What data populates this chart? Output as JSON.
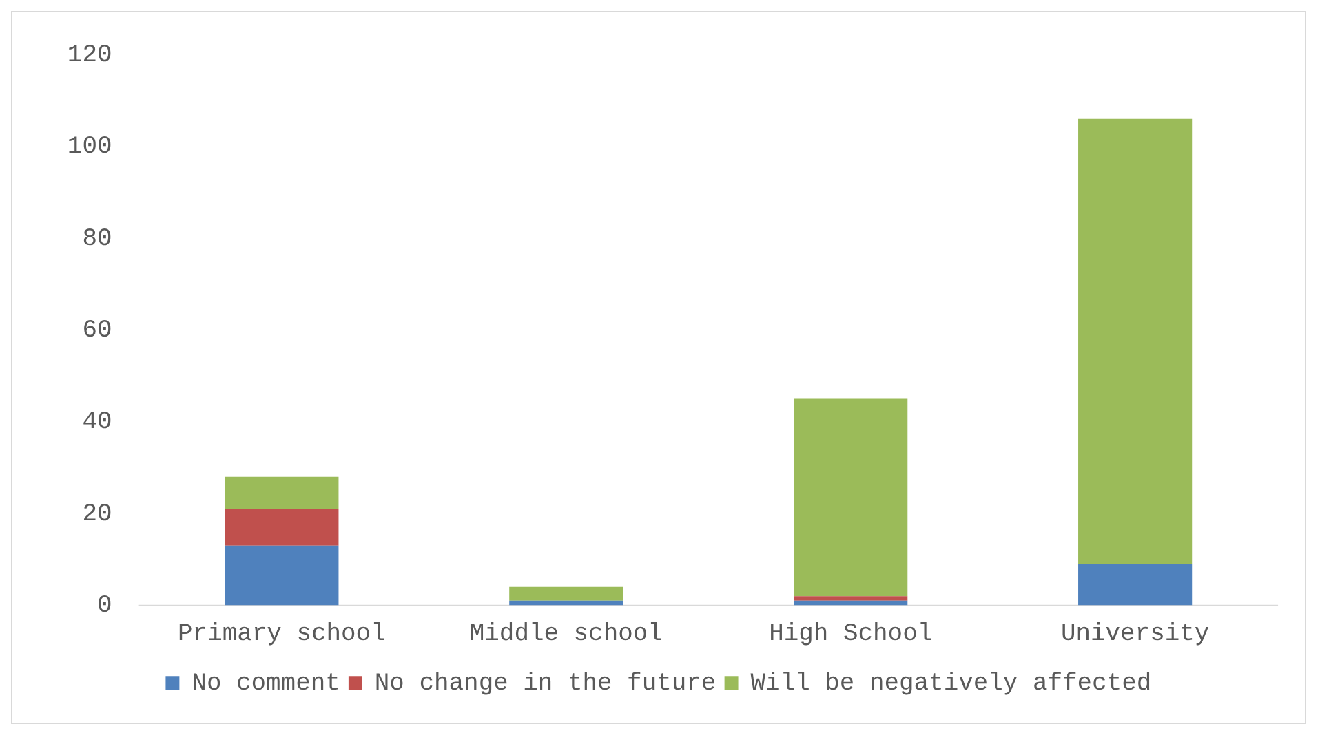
{
  "chart_data": {
    "type": "bar",
    "stacked": true,
    "categories": [
      "Primary school",
      "Middle school",
      "High School",
      "University"
    ],
    "series": [
      {
        "name": "No comment",
        "color": "#4f81bd",
        "values": [
          13,
          1,
          1,
          9
        ]
      },
      {
        "name": "No change in the future",
        "color": "#c0504d",
        "values": [
          8,
          0,
          1,
          0
        ]
      },
      {
        "name": "Will be negatively affected",
        "color": "#9bbb59",
        "values": [
          7,
          3,
          43,
          97
        ]
      }
    ],
    "ylim": [
      0,
      120
    ],
    "yticks": [
      0,
      20,
      40,
      60,
      80,
      100,
      120
    ],
    "grid": false,
    "legend": "bottom"
  }
}
